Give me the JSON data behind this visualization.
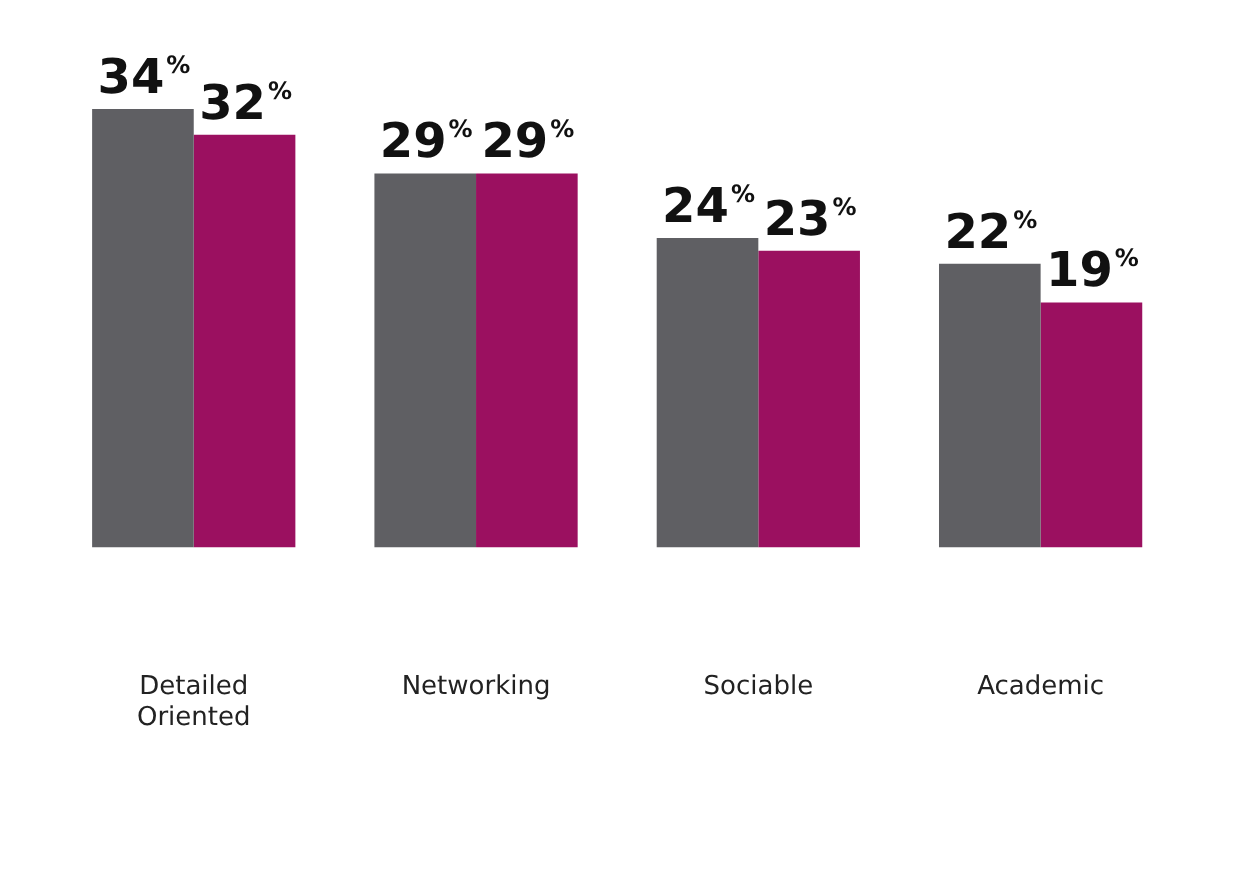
{
  "chart_data": {
    "type": "bar",
    "categories": [
      "Detailed Oriented",
      "Networking",
      "Sociable",
      "Academic"
    ],
    "series": [
      {
        "color": "#5f5f63",
        "values": [
          34,
          29,
          24,
          22
        ],
        "value_labels": [
          "34%",
          "29%",
          "24%",
          "22%"
        ]
      },
      {
        "color": "#9b1060",
        "values": [
          32,
          29,
          23,
          19
        ],
        "value_labels": [
          "32%",
          "29%",
          "23%",
          "19%"
        ]
      }
    ],
    "grid": false,
    "legend": false
  }
}
